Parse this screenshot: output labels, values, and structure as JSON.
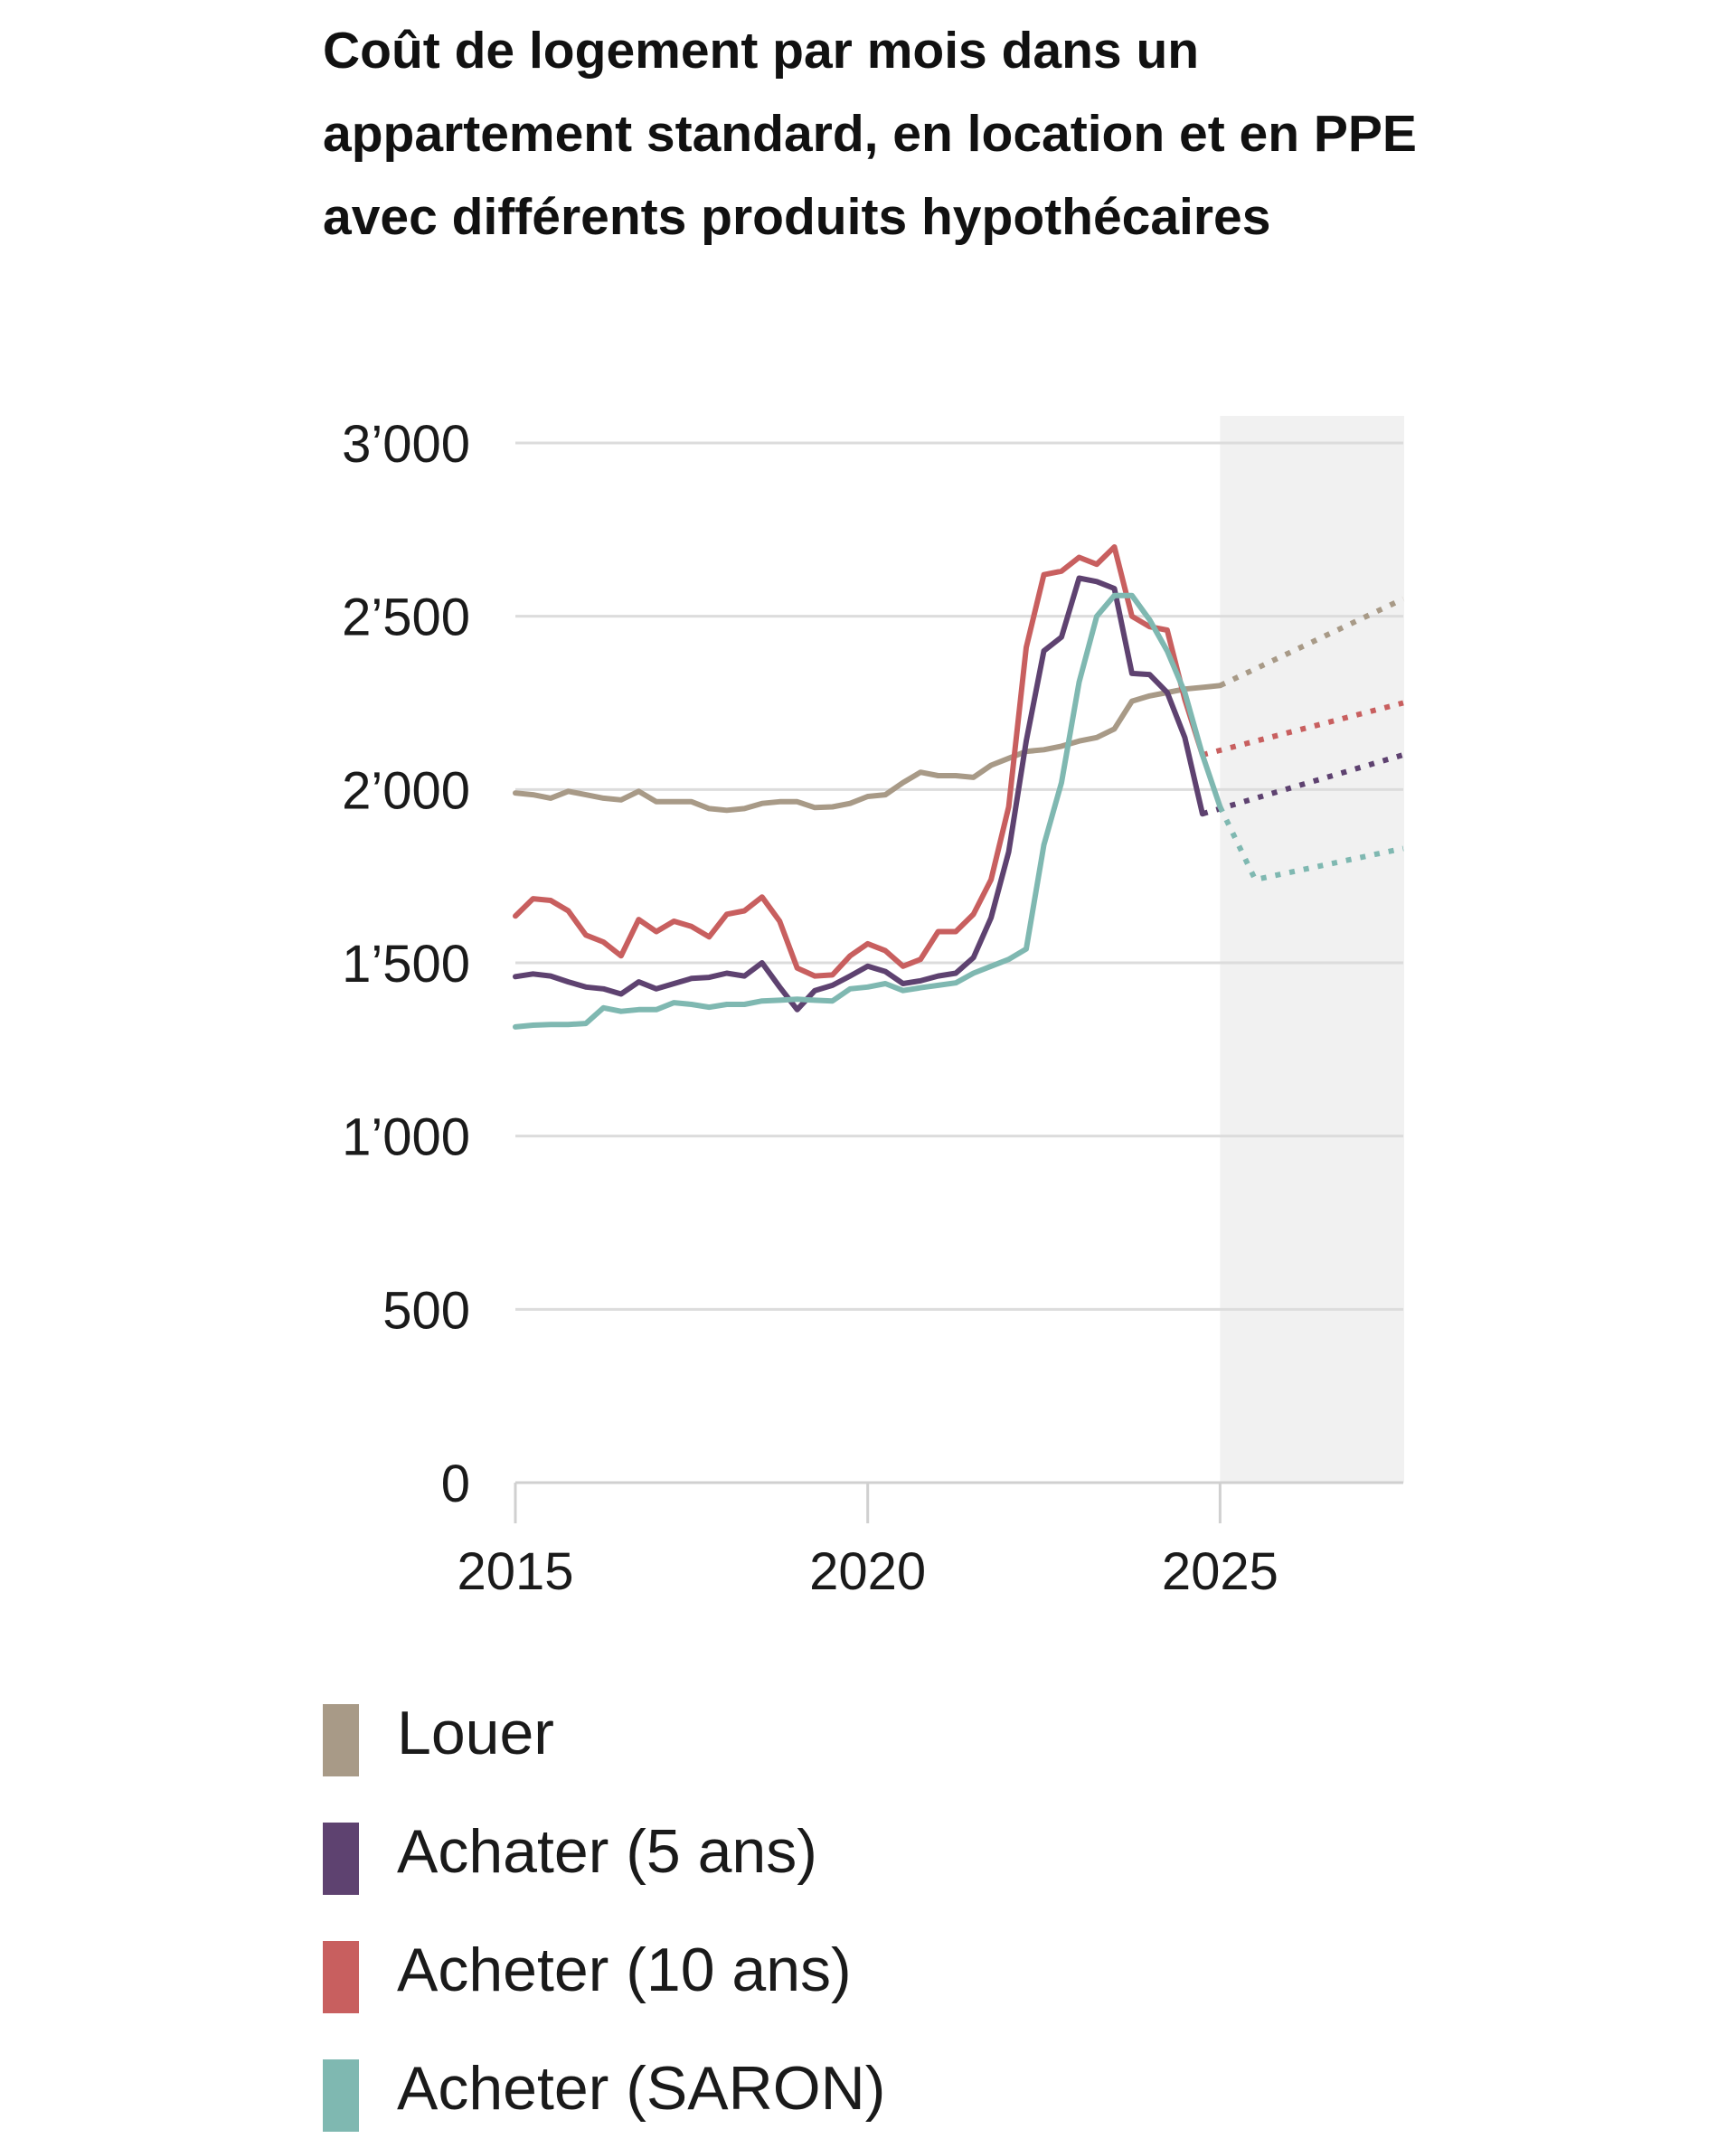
{
  "chart_data": {
    "type": "line",
    "title": "Coût de logement par mois dans un appartement standard, en location et en PPE avec différents produits hypothécaires",
    "xlabel": "",
    "ylabel": "",
    "xlim": [
      2015,
      2027.6
    ],
    "ylim": [
      0,
      3000
    ],
    "y_ticks": [
      0,
      500,
      1000,
      1500,
      2000,
      2500,
      3000
    ],
    "y_tick_labels": [
      "0",
      "500",
      "1’000",
      "1’500",
      "2’000",
      "2’500",
      "3’000"
    ],
    "x_ticks": [
      2015,
      2020,
      2025
    ],
    "x_tick_labels": [
      "2015",
      "2020",
      "2025"
    ],
    "grid": "horizontal",
    "forecast_region": [
      2025,
      2027.6
    ],
    "legend_position": "bottom",
    "series": [
      {
        "name": "Louer",
        "color": "#a89a87",
        "values": [
          [
            2015.0,
            1990
          ],
          [
            2015.25,
            1985
          ],
          [
            2015.5,
            1975
          ],
          [
            2015.75,
            1995
          ],
          [
            2016.0,
            1985
          ],
          [
            2016.25,
            1975
          ],
          [
            2016.5,
            1970
          ],
          [
            2016.75,
            1995
          ],
          [
            2017.0,
            1965
          ],
          [
            2017.25,
            1965
          ],
          [
            2017.5,
            1965
          ],
          [
            2017.75,
            1945
          ],
          [
            2018.0,
            1940
          ],
          [
            2018.25,
            1945
          ],
          [
            2018.5,
            1960
          ],
          [
            2018.75,
            1965
          ],
          [
            2019.0,
            1965
          ],
          [
            2019.25,
            1948
          ],
          [
            2019.5,
            1950
          ],
          [
            2019.75,
            1960
          ],
          [
            2020.0,
            1980
          ],
          [
            2020.25,
            1985
          ],
          [
            2020.5,
            2020
          ],
          [
            2020.75,
            2050
          ],
          [
            2021.0,
            2040
          ],
          [
            2021.25,
            2040
          ],
          [
            2021.5,
            2035
          ],
          [
            2021.75,
            2070
          ],
          [
            2022.0,
            2090
          ],
          [
            2022.25,
            2110
          ],
          [
            2022.5,
            2115
          ],
          [
            2022.75,
            2125
          ],
          [
            2023.0,
            2140
          ],
          [
            2023.25,
            2150
          ],
          [
            2023.5,
            2175
          ],
          [
            2023.75,
            2255
          ],
          [
            2024.0,
            2270
          ],
          [
            2024.25,
            2280
          ],
          [
            2024.5,
            2290
          ],
          [
            2024.75,
            2295
          ],
          [
            2025.0,
            2300
          ]
        ],
        "forecast": [
          [
            2025.0,
            2300
          ],
          [
            2027.6,
            2550
          ]
        ]
      },
      {
        "name": "Achater (5 ans)",
        "color": "#5e4270",
        "values": [
          [
            2015.0,
            1460
          ],
          [
            2015.25,
            1468
          ],
          [
            2015.5,
            1462
          ],
          [
            2015.75,
            1445
          ],
          [
            2016.0,
            1430
          ],
          [
            2016.25,
            1425
          ],
          [
            2016.5,
            1410
          ],
          [
            2016.75,
            1445
          ],
          [
            2017.0,
            1425
          ],
          [
            2017.25,
            1440
          ],
          [
            2017.5,
            1455
          ],
          [
            2017.75,
            1458
          ],
          [
            2018.0,
            1470
          ],
          [
            2018.25,
            1462
          ],
          [
            2018.5,
            1500
          ],
          [
            2018.75,
            1430
          ],
          [
            2019.0,
            1365
          ],
          [
            2019.25,
            1420
          ],
          [
            2019.5,
            1435
          ],
          [
            2019.75,
            1462
          ],
          [
            2020.0,
            1490
          ],
          [
            2020.25,
            1475
          ],
          [
            2020.5,
            1440
          ],
          [
            2020.75,
            1448
          ],
          [
            2021.0,
            1462
          ],
          [
            2021.25,
            1470
          ],
          [
            2021.5,
            1515
          ],
          [
            2021.75,
            1630
          ],
          [
            2022.0,
            1820
          ],
          [
            2022.25,
            2140
          ],
          [
            2022.5,
            2400
          ],
          [
            2022.75,
            2440
          ],
          [
            2023.0,
            2610
          ],
          [
            2023.25,
            2600
          ],
          [
            2023.5,
            2580
          ],
          [
            2023.75,
            2335
          ],
          [
            2024.0,
            2332
          ],
          [
            2024.25,
            2280
          ],
          [
            2024.5,
            2150
          ],
          [
            2024.75,
            1930
          ]
        ],
        "forecast": [
          [
            2024.75,
            1930
          ],
          [
            2027.6,
            2100
          ]
        ]
      },
      {
        "name": "Acheter (10 ans)",
        "color": "#c85f5f",
        "values": [
          [
            2015.0,
            1635
          ],
          [
            2015.25,
            1685
          ],
          [
            2015.5,
            1680
          ],
          [
            2015.75,
            1650
          ],
          [
            2016.0,
            1580
          ],
          [
            2016.25,
            1560
          ],
          [
            2016.5,
            1520
          ],
          [
            2016.75,
            1625
          ],
          [
            2017.0,
            1590
          ],
          [
            2017.25,
            1620
          ],
          [
            2017.5,
            1605
          ],
          [
            2017.75,
            1575
          ],
          [
            2018.0,
            1640
          ],
          [
            2018.25,
            1650
          ],
          [
            2018.5,
            1690
          ],
          [
            2018.75,
            1620
          ],
          [
            2019.0,
            1485
          ],
          [
            2019.25,
            1462
          ],
          [
            2019.5,
            1465
          ],
          [
            2019.75,
            1520
          ],
          [
            2020.0,
            1555
          ],
          [
            2020.25,
            1535
          ],
          [
            2020.5,
            1490
          ],
          [
            2020.75,
            1510
          ],
          [
            2021.0,
            1590
          ],
          [
            2021.25,
            1590
          ],
          [
            2021.5,
            1640
          ],
          [
            2021.75,
            1740
          ],
          [
            2022.0,
            1950
          ],
          [
            2022.25,
            2410
          ],
          [
            2022.5,
            2620
          ],
          [
            2022.75,
            2630
          ],
          [
            2023.0,
            2670
          ],
          [
            2023.25,
            2650
          ],
          [
            2023.5,
            2700
          ],
          [
            2023.75,
            2500
          ],
          [
            2024.0,
            2470
          ],
          [
            2024.25,
            2460
          ],
          [
            2024.5,
            2260
          ],
          [
            2024.75,
            2100
          ]
        ],
        "forecast": [
          [
            2024.75,
            2100
          ],
          [
            2027.6,
            2250
          ]
        ]
      },
      {
        "name": "Acheter (SARON)",
        "color": "#7fb8b1",
        "values": [
          [
            2015.0,
            1315
          ],
          [
            2015.25,
            1320
          ],
          [
            2015.5,
            1322
          ],
          [
            2015.75,
            1322
          ],
          [
            2016.0,
            1325
          ],
          [
            2016.25,
            1370
          ],
          [
            2016.5,
            1360
          ],
          [
            2016.75,
            1365
          ],
          [
            2017.0,
            1365
          ],
          [
            2017.25,
            1385
          ],
          [
            2017.5,
            1380
          ],
          [
            2017.75,
            1372
          ],
          [
            2018.0,
            1380
          ],
          [
            2018.25,
            1380
          ],
          [
            2018.5,
            1390
          ],
          [
            2018.75,
            1392
          ],
          [
            2019.0,
            1395
          ],
          [
            2019.25,
            1392
          ],
          [
            2019.5,
            1390
          ],
          [
            2019.75,
            1425
          ],
          [
            2020.0,
            1430
          ],
          [
            2020.25,
            1440
          ],
          [
            2020.5,
            1420
          ],
          [
            2020.75,
            1428
          ],
          [
            2021.0,
            1435
          ],
          [
            2021.25,
            1442
          ],
          [
            2021.5,
            1470
          ],
          [
            2021.75,
            1490
          ],
          [
            2022.0,
            1510
          ],
          [
            2022.25,
            1540
          ],
          [
            2022.5,
            1840
          ],
          [
            2022.75,
            2020
          ],
          [
            2023.0,
            2310
          ],
          [
            2023.25,
            2500
          ],
          [
            2023.5,
            2560
          ],
          [
            2023.75,
            2560
          ],
          [
            2024.0,
            2490
          ],
          [
            2024.25,
            2400
          ],
          [
            2024.5,
            2280
          ],
          [
            2024.75,
            2100
          ],
          [
            2025.0,
            1950
          ]
        ],
        "forecast": [
          [
            2025.0,
            1950
          ],
          [
            2025.5,
            1740
          ],
          [
            2027.6,
            1830
          ]
        ]
      }
    ]
  }
}
